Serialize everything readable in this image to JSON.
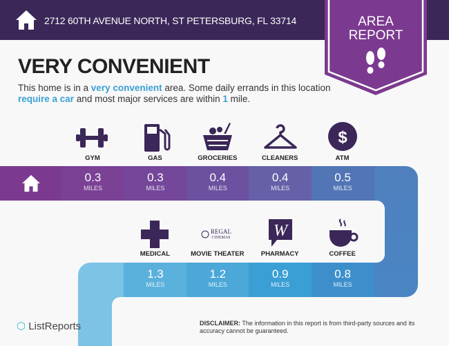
{
  "header": {
    "address": "2712 60TH AVENUE NORTH, ST PETERSBURG, FL 33714",
    "icon": "house-icon"
  },
  "badge": {
    "line1": "AREA",
    "line2": "REPORT",
    "icon": "footprints-icon",
    "color": "#7b3a8f"
  },
  "title": "VERY CONVENIENT",
  "description": {
    "p1": "This home is in a ",
    "h1": "very convenient",
    "p2": " area. Some daily errands in this location ",
    "h2": "require a car",
    "p3": " and most major services are within ",
    "h3": "1",
    "p4": " mile."
  },
  "row1": [
    {
      "label": "GYM",
      "value": "0.3",
      "unit": "MILES",
      "icon": "dumbbell-icon"
    },
    {
      "label": "GAS",
      "value": "0.3",
      "unit": "MILES",
      "icon": "gas-pump-icon"
    },
    {
      "label": "GROCERIES",
      "value": "0.4",
      "unit": "MILES",
      "icon": "basket-icon"
    },
    {
      "label": "CLEANERS",
      "value": "0.4",
      "unit": "MILES",
      "icon": "hanger-icon"
    },
    {
      "label": "ATM",
      "value": "0.5",
      "unit": "MILES",
      "icon": "dollar-icon"
    }
  ],
  "row2": [
    {
      "label": "MEDICAL",
      "value": "1.3",
      "unit": "MILES",
      "icon": "cross-icon"
    },
    {
      "label": "MOVIE THEATER",
      "value": "1.2",
      "unit": "MILES",
      "icon": "regal-cinemas-logo",
      "logo_text": "REGAL CINEMAS"
    },
    {
      "label": "PHARMACY",
      "value": "0.9",
      "unit": "MILES",
      "icon": "walgreens-icon"
    },
    {
      "label": "COFFEE",
      "value": "0.8",
      "unit": "MILES",
      "icon": "coffee-cup-icon"
    }
  ],
  "footer": {
    "logo": "ListReports",
    "disclaimer_label": "DISCLAIMER:",
    "disclaimer": " The information in this report is from third-party sources and its accuracy cannot be guaranteed."
  }
}
